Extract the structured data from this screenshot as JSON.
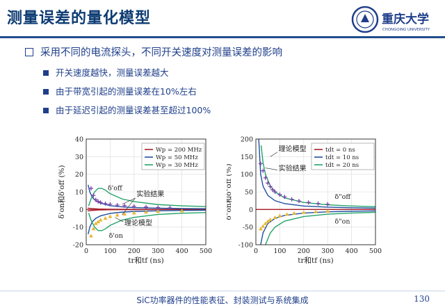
{
  "slide": {
    "title": "测量误差的量化模型",
    "logo_text": "重庆大学",
    "logo_subtext": "CHONGQING UNIVERSITY",
    "main_bullet": "采用不同的电流探头，不同开关速度对测量误差的影响",
    "sub_bullets": [
      "开关速度越快，测量误差越大",
      "由于带宽引起的测量误差在10%左右",
      "由于延迟引起的测量误差甚至超过100%"
    ],
    "footer": "SiC功率器件的性能表征、封装测试与系统集成",
    "page_number": "130"
  },
  "colors": {
    "red": "#a81f2a",
    "blue": "#1f4fa0",
    "green": "#23a36a",
    "purple": "#7a3fa8",
    "yellow": "#e8b632",
    "theory": "#2a8a8a"
  },
  "chart_data": [
    {
      "type": "line",
      "xlabel": "tr和tf (ns)",
      "ylabel": "δ'on和δ'off (%)",
      "xlim": [
        0,
        500
      ],
      "ylim": [
        -20,
        40
      ],
      "xticks": [
        "0",
        "100",
        "200",
        "300",
        "400",
        "500"
      ],
      "yticks": [
        "-20",
        "-10",
        "0",
        "10",
        "20",
        "30",
        "40"
      ],
      "legend": [
        "Wp = 200 MHz",
        "Wp = 50 MHz",
        "Wp = 30 MHz"
      ],
      "annotations": {
        "off": "δ'off",
        "on": "δ'on",
        "experiment": "实验结果",
        "theory": "理论模型"
      },
      "series": [
        {
          "name": "Wp = 200 MHz",
          "color": "red",
          "x": [
            6,
            20,
            50,
            100,
            200,
            300,
            500
          ],
          "y": [
            0.8,
            0.6,
            0.3,
            0.15,
            0.08,
            0.05,
            0.03
          ],
          "mirror": true
        },
        {
          "name": "Wp = 50 MHz",
          "color": "blue",
          "x": [
            8,
            15,
            25,
            40,
            60,
            100,
            150,
            200,
            300,
            400,
            500
          ],
          "y": [
            14,
            10,
            7,
            5,
            3.6,
            2.2,
            1.5,
            1.1,
            0.75,
            0.55,
            0.45
          ],
          "mirror": true
        },
        {
          "name": "Wp = 30 MHz",
          "color": "green",
          "x": [
            10,
            20,
            35,
            50,
            65,
            80,
            100,
            150,
            200,
            300,
            400,
            500
          ],
          "y": [
            2,
            6,
            10,
            12,
            12,
            11,
            9,
            6,
            4.5,
            2.8,
            2.1,
            1.7
          ],
          "mirror": true
        }
      ],
      "experiment_off": {
        "x": [
          20,
          30,
          40,
          50,
          60,
          80,
          100,
          130,
          160,
          200,
          250,
          300,
          350
        ],
        "y": [
          12,
          8,
          5.5,
          4.5,
          4,
          3.4,
          3,
          2.5,
          2.2,
          1.8,
          1.4,
          1.1,
          0.9
        ]
      },
      "experiment_on": {
        "x": [
          20,
          30,
          40,
          50,
          60,
          80,
          100,
          130,
          160,
          200,
          250,
          300,
          400
        ],
        "y": [
          -15,
          -11,
          -8,
          -7,
          -6,
          -5,
          -4,
          -3.2,
          -2.6,
          -2,
          -1.5,
          -1.1,
          -0.8
        ]
      }
    },
    {
      "type": "line",
      "xlabel": "tr和tf (ns)",
      "ylabel": "δ\"on和δ\"off (%)",
      "xlim": [
        0,
        500
      ],
      "ylim": [
        -100,
        200
      ],
      "xticks": [
        "0",
        "100",
        "200",
        "300",
        "400",
        "500"
      ],
      "yticks": [
        "-100",
        "-50",
        "0",
        "50",
        "100",
        "150",
        "200"
      ],
      "legend": [
        "tdt = 0 ns",
        "tdt = 10 ns",
        "tdt = 20 ns"
      ],
      "annotations": {
        "off": "δ\"off",
        "on": "δ\"on",
        "experiment": "实验结果",
        "theory": "理论模型"
      },
      "series": [
        {
          "name": "tdt = 0 ns",
          "color": "red",
          "x": [
            0,
            500
          ],
          "y": [
            0,
            0
          ],
          "mirror": false
        },
        {
          "name": "tdt = 10 ns",
          "color": "blue",
          "x": [
            12,
            20,
            30,
            50,
            80,
            120,
            200,
            300,
            400,
            500
          ],
          "y": [
            200,
            100,
            66,
            40,
            25,
            16.7,
            10,
            6.7,
            5,
            4
          ],
          "mirror": true
        },
        {
          "name": "tdt = 20 ns",
          "color": "green",
          "x": [
            22,
            30,
            40,
            60,
            80,
            120,
            200,
            300,
            400,
            500
          ],
          "y": [
            182,
            133,
            100,
            67,
            50,
            33,
            20,
            13.3,
            10,
            8
          ],
          "mirror": true
        }
      ],
      "experiment_off": {
        "x": [
          20,
          30,
          40,
          50,
          60,
          70,
          80,
          100,
          120,
          150,
          180,
          220,
          260,
          300
        ],
        "y": [
          130,
          110,
          90,
          75,
          65,
          56,
          50,
          42,
          36,
          29,
          24,
          20,
          17,
          15
        ]
      },
      "experiment_on": {
        "x": [
          20,
          30,
          40,
          50,
          60,
          80,
          100,
          130,
          160,
          200,
          250,
          300
        ],
        "y": [
          -55,
          -48,
          -40,
          -34,
          -29,
          -23,
          -18,
          -14,
          -11,
          -8.5,
          -6.5,
          -5
        ]
      }
    }
  ]
}
